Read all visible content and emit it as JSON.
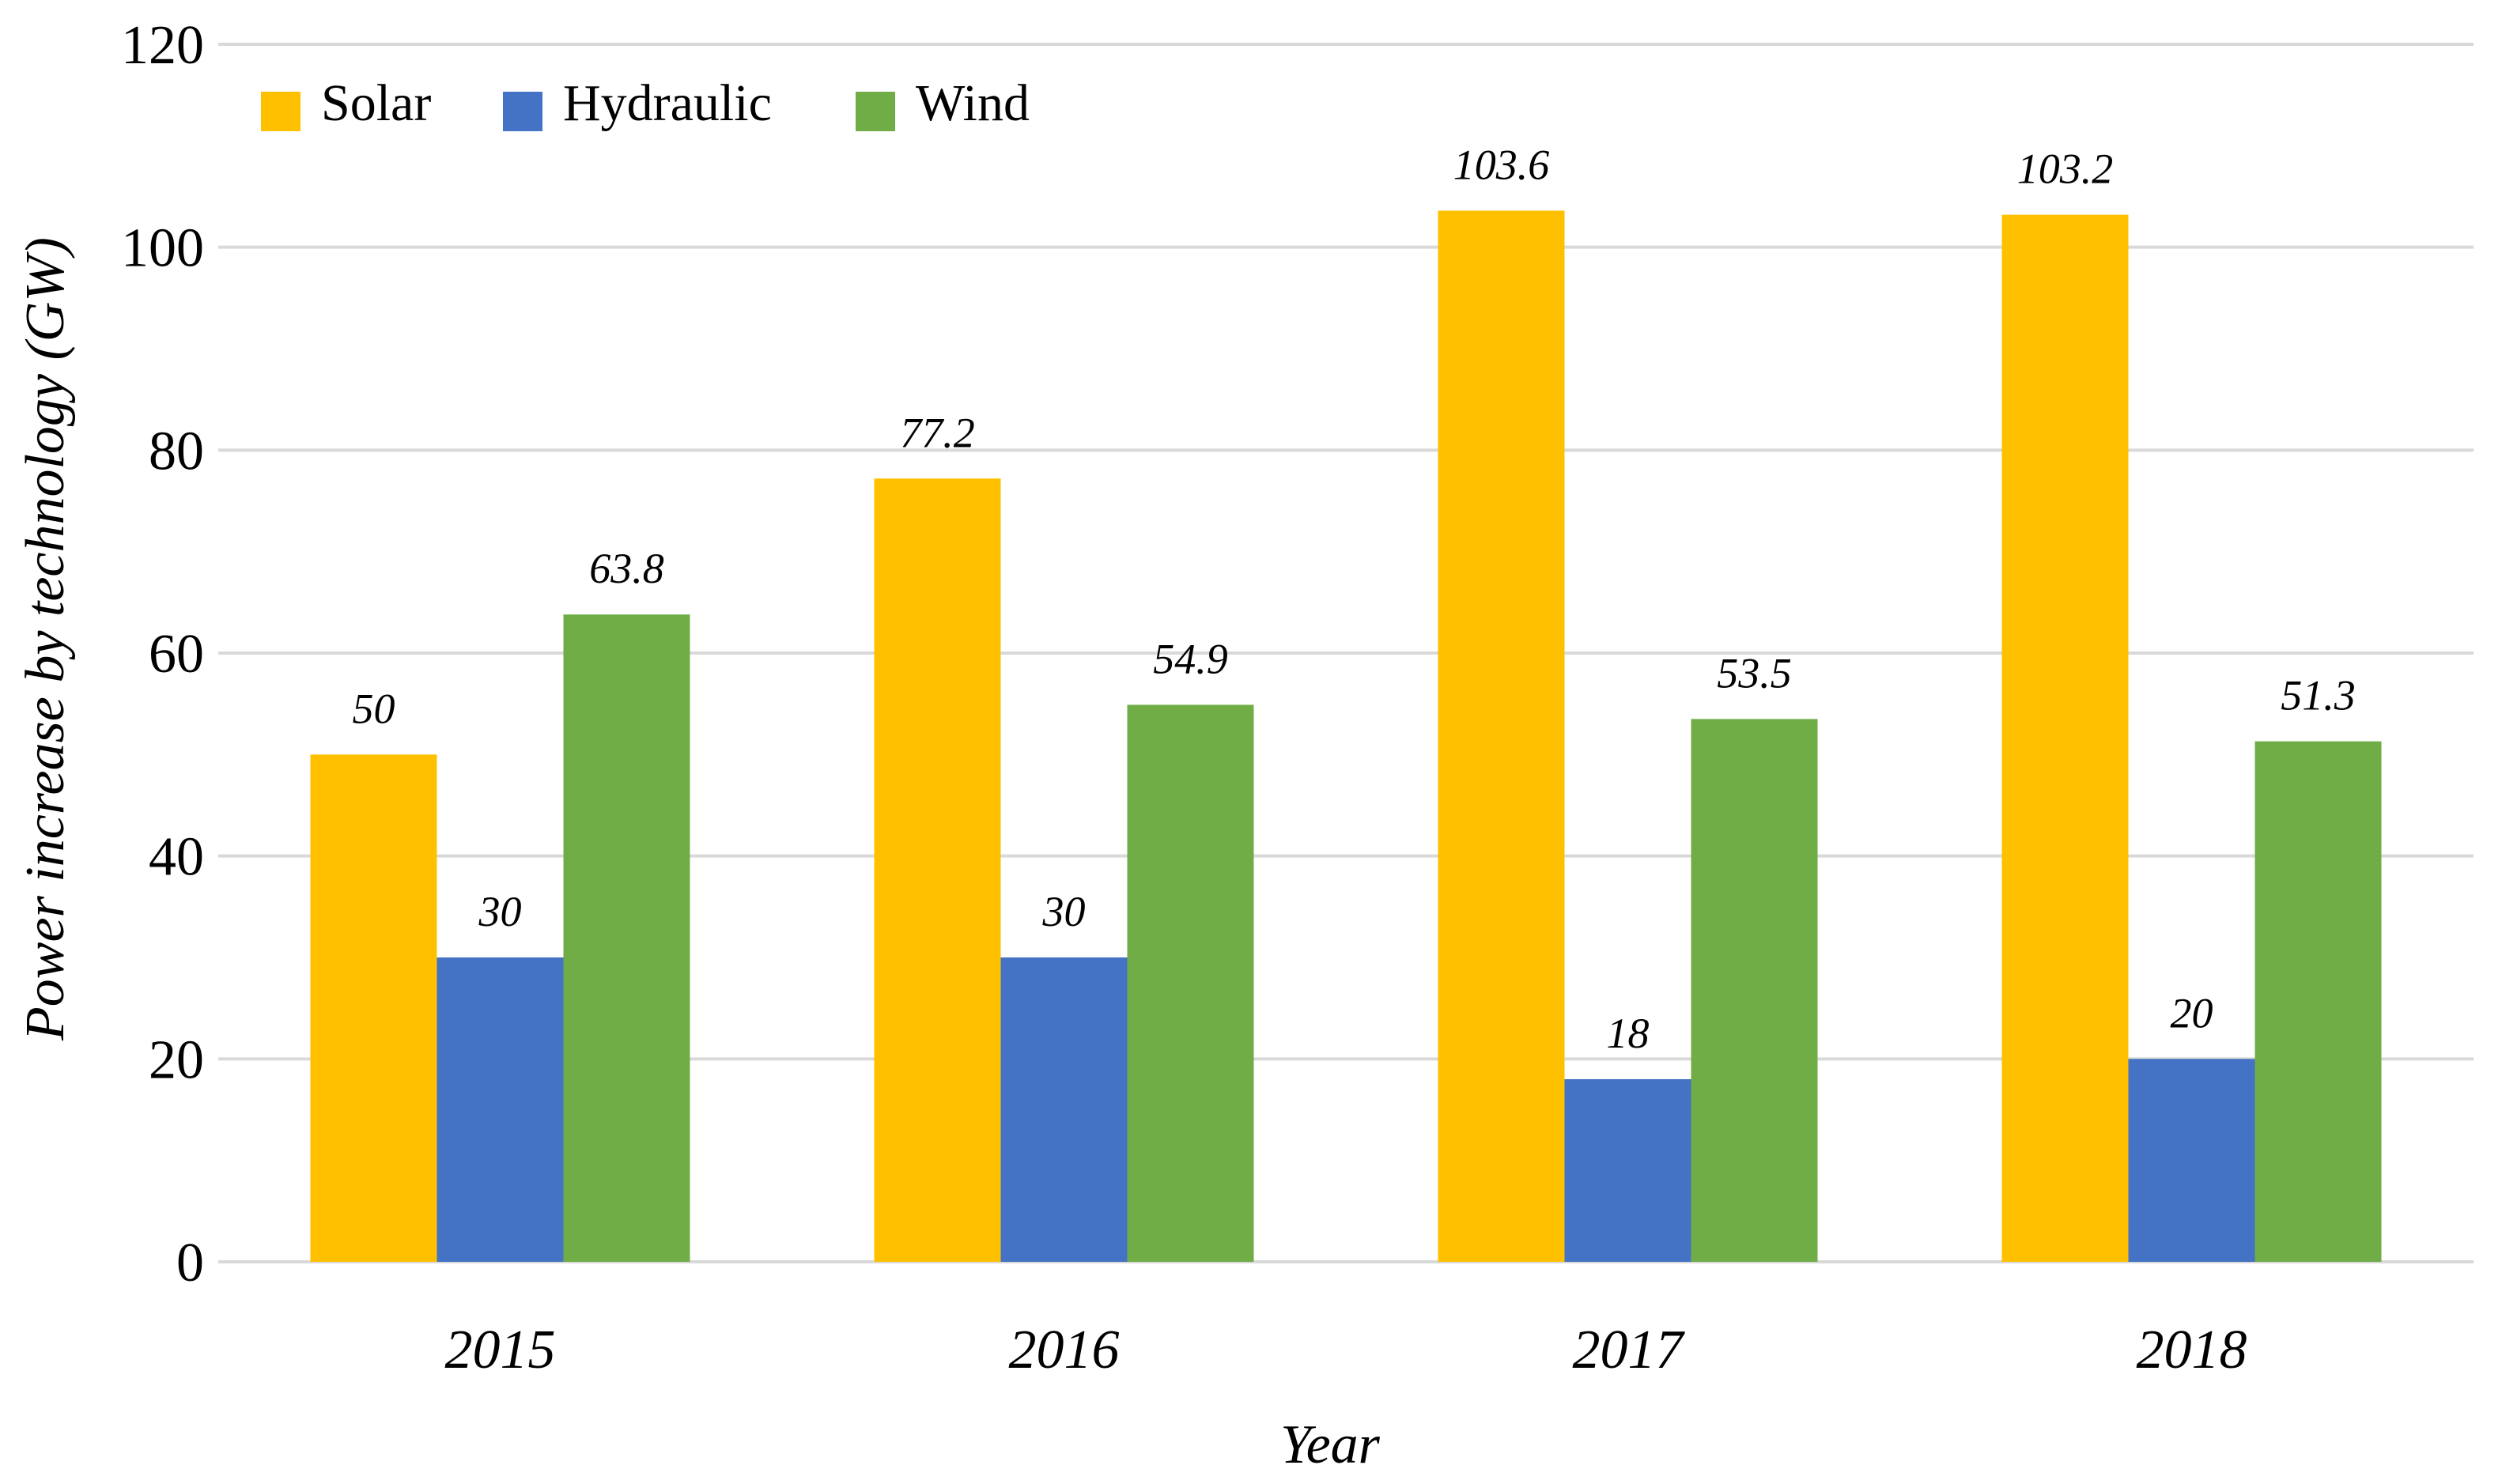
{
  "chart_data": {
    "type": "bar",
    "title": "",
    "xlabel": "Year",
    "ylabel": "Power increase by technology (GW)",
    "categories": [
      "2015",
      "2016",
      "2017",
      "2018"
    ],
    "series": [
      {
        "name": "Solar",
        "color": "#FFC000",
        "values": [
          50,
          77.2,
          103.6,
          103.2
        ]
      },
      {
        "name": "Hydraulic",
        "color": "#4472C4",
        "values": [
          30,
          30,
          18,
          20
        ]
      },
      {
        "name": "Wind",
        "color": "#70AD47",
        "values": [
          63.8,
          54.9,
          53.5,
          51.3
        ]
      }
    ],
    "data_labels": [
      [
        "50",
        "77.2",
        "103.6",
        "103.2"
      ],
      [
        "30",
        "30",
        "18",
        "20"
      ],
      [
        "63.8",
        "54.9",
        "53.5",
        "51.3"
      ]
    ],
    "ylim": [
      0,
      120
    ],
    "yticks": [
      0,
      20,
      40,
      60,
      80,
      100,
      120
    ],
    "ytick_labels": [
      "0",
      "20",
      "40",
      "60",
      "80",
      "100",
      "120"
    ],
    "grid": true,
    "legend_position": "top-left"
  }
}
